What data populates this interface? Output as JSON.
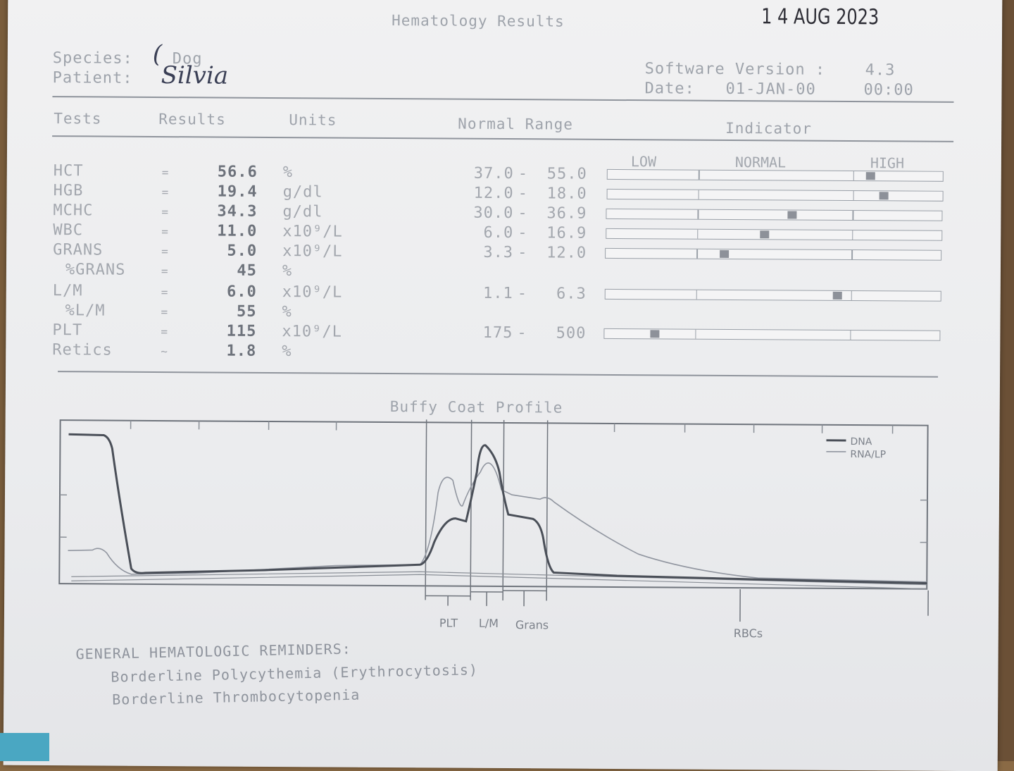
{
  "report": {
    "title": "Hematology Results",
    "stamp_date": "1 4 AUG 2023",
    "species_label": "Species:",
    "species_value": "Dog",
    "patient_label": "Patient:",
    "patient_value": "Silvia",
    "software_label": "Software Version :",
    "software_value": "4.3",
    "date_label": "Date:",
    "date_value": "01-JAN-00",
    "time_value": "00:00"
  },
  "columns": {
    "tests": "Tests",
    "results": "Results",
    "units": "Units",
    "normal_range": "Normal Range",
    "indicator": "Indicator"
  },
  "indicator_labels": {
    "low": "LOW",
    "normal": "NORMAL",
    "high": "HIGH"
  },
  "rows": [
    {
      "test": "HCT",
      "sep": "=",
      "result": "56.6",
      "unit": "%",
      "low": "37.0",
      "high": "55.0",
      "level": 0.78
    },
    {
      "test": "HGB",
      "sep": "=",
      "result": "19.4",
      "unit": "g/dl",
      "low": "12.0",
      "high": "18.0",
      "level": 0.82
    },
    {
      "test": "MCHC",
      "sep": "=",
      "result": "34.3",
      "unit": "g/dl",
      "low": "30.0",
      "high": "36.9",
      "level": 0.55
    },
    {
      "test": "WBC",
      "sep": "=",
      "result": "11.0",
      "unit": "x10⁹/L",
      "low": "6.0",
      "high": "16.9",
      "level": 0.47
    },
    {
      "test": "GRANS",
      "sep": "=",
      "result": "5.0",
      "unit": "x10⁹/L",
      "low": "3.3",
      "high": "12.0",
      "level": 0.35
    },
    {
      "test": "%GRANS",
      "sep": "=",
      "result": "45",
      "unit": "%",
      "low": "",
      "high": "",
      "level": null
    },
    {
      "test": "L/M",
      "sep": "=",
      "result": "6.0",
      "unit": "x10⁹/L",
      "low": "1.1",
      "high": "6.3",
      "level": 0.69
    },
    {
      "test": "%L/M",
      "sep": "=",
      "result": "55",
      "unit": "%",
      "low": "",
      "high": "",
      "level": null
    },
    {
      "test": "PLT",
      "sep": "=",
      "result": "115",
      "unit": "x10⁹/L",
      "low": "175",
      "high": "500",
      "level": 0.15
    },
    {
      "test": "Retics",
      "sep": "~",
      "result": "1.8",
      "unit": "%",
      "low": "",
      "high": "",
      "level": null
    }
  ],
  "chart": {
    "title": "Buffy Coat Profile",
    "legend": [
      "DNA",
      "RNA/LP"
    ],
    "zones": [
      "PLT",
      "L/M",
      "Grans",
      "RBCs"
    ]
  },
  "reminders": {
    "heading": "GENERAL HEMATOLOGIC REMINDERS:",
    "items": [
      "Borderline Polycythemia (Erythrocytosis)",
      "Borderline Thrombocytopenia"
    ]
  }
}
